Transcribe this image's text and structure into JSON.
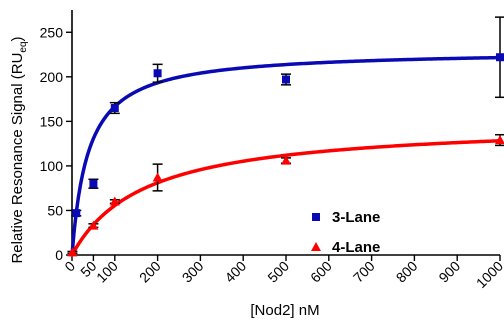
{
  "chart_data": {
    "type": "scatter",
    "xlabel": "[Nod2] nM",
    "ylabel_main": "Relative Resonance Signal (RU",
    "ylabel_sub": "eq",
    "ylabel_close": ")",
    "xlim": [
      0,
      1000
    ],
    "ylim": [
      0,
      275
    ],
    "x_ticks": [
      0,
      50,
      100,
      200,
      300,
      400,
      500,
      600,
      700,
      800,
      900,
      1000
    ],
    "y_ticks": [
      0,
      50,
      100,
      150,
      200,
      250
    ],
    "legend_position": "center-right",
    "grid": false,
    "series": [
      {
        "name": "3-Lane",
        "color": "#0a0ab4",
        "marker": "square",
        "x": [
          10,
          50,
          100,
          200,
          500,
          1000
        ],
        "y": [
          47,
          80,
          165,
          204,
          197,
          222
        ],
        "err": [
          3,
          5,
          6,
          10,
          6,
          45
        ],
        "fit": {
          "model": "one-site binding",
          "bmax": 230,
          "kd": 38
        }
      },
      {
        "name": "4-Lane",
        "color": "#ff0000",
        "marker": "triangle",
        "x": [
          1,
          50,
          100,
          200,
          500,
          1000
        ],
        "y": [
          3,
          33,
          60,
          87,
          106,
          129
        ],
        "err": [
          1,
          2,
          2,
          15,
          3,
          6
        ],
        "fit": {
          "model": "one-site binding",
          "bmax": 150,
          "kd": 170
        }
      }
    ]
  }
}
